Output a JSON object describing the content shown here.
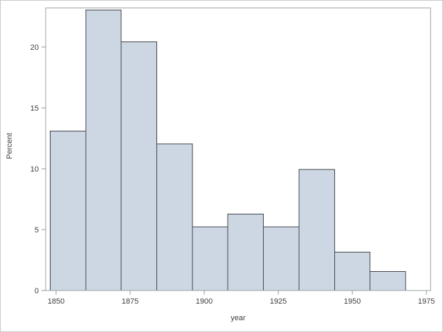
{
  "figure": {
    "background": "#ffffff",
    "border_color": "#c5c9cc"
  },
  "chart_data": {
    "type": "bar",
    "subtype": "histogram",
    "title": "",
    "xlabel": "year",
    "ylabel": "Percent",
    "x_ticks": [
      1850,
      1875,
      1900,
      1925,
      1950,
      1975
    ],
    "y_ticks": [
      0,
      5,
      10,
      15,
      20
    ],
    "xlim": [
      1846.5,
      1976.5
    ],
    "ylim": [
      0,
      23.2
    ],
    "bin_width_years": 12,
    "bin_edges": [
      1848,
      1860,
      1872,
      1884,
      1896,
      1908,
      1920,
      1932,
      1944,
      1956,
      1968
    ],
    "bin_midpoints": [
      1854,
      1866,
      1878,
      1890,
      1902,
      1914,
      1926,
      1938,
      1950,
      1962
    ],
    "values_percent": [
      13.09,
      23.04,
      20.42,
      12.04,
      5.24,
      6.28,
      5.24,
      9.95,
      3.14,
      1.57
    ],
    "grid": false,
    "legend": "none",
    "colors": {
      "bar_fill": "#cdd6e3",
      "bar_stroke": "#3f444a",
      "axis_line": "#9aa0a6",
      "tick_mark": "#8f959b",
      "text": "#3c3c3c"
    }
  }
}
